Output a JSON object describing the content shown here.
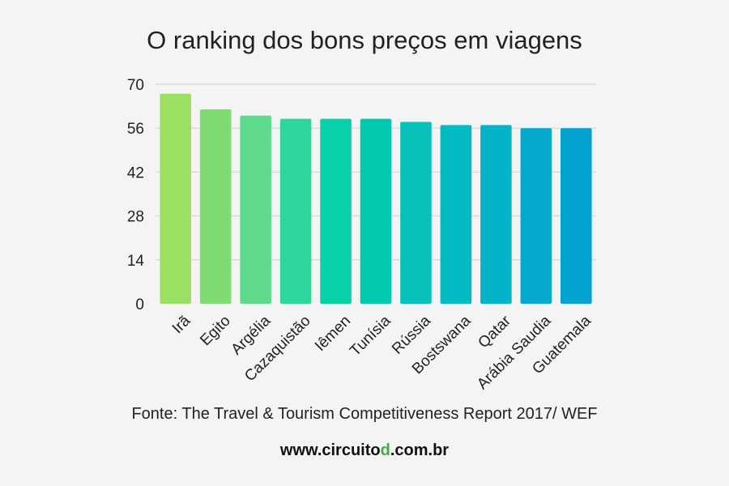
{
  "chart_data": {
    "type": "bar",
    "title": "O ranking dos bons preços em viagens",
    "xlabel": "",
    "ylabel": "",
    "ylim": [
      0,
      70
    ],
    "yticks": [
      0,
      14,
      28,
      42,
      56,
      70
    ],
    "grid": true,
    "categories": [
      "Irã",
      "Egito",
      "Argélia",
      "Cazaquistão",
      "Iêmen",
      "Tunísia",
      "Rússia",
      "Bostswana",
      "Qatar",
      "Arábia Saudia",
      "Guatemala"
    ],
    "values": [
      67,
      62,
      60,
      59,
      59,
      59,
      58,
      57,
      57,
      56,
      56
    ],
    "colors": [
      "#9be063",
      "#7fdc72",
      "#5fd98a",
      "#2fd69c",
      "#08d1a9",
      "#04c8b0",
      "#05c1ba",
      "#04bac3",
      "#04b3c8",
      "#04aacc",
      "#04a2ce"
    ]
  },
  "footer": {
    "source": "Fonte: The Travel & Tourism Competitiveness Report 2017/ WEF",
    "url_prefix": "www.circuito",
    "url_accent": "d",
    "url_suffix": ".com.br",
    "accent_color": "#3cb043"
  }
}
